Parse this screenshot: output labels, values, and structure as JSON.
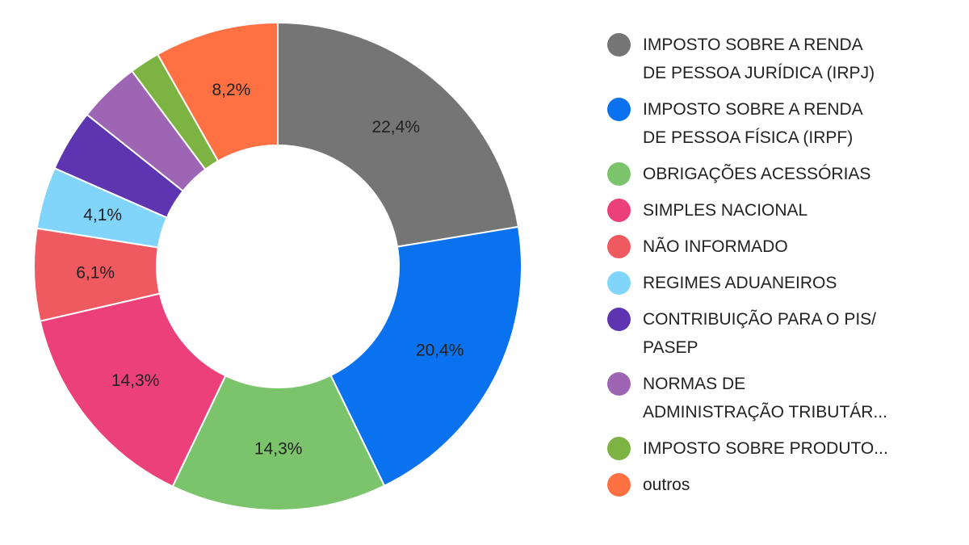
{
  "chart_data": {
    "type": "pie",
    "title": "",
    "categories": [
      "IMPOSTO SOBRE A RENDA\nDE PESSOA JURÍDICA (IRPJ)",
      "IMPOSTO SOBRE A RENDA\nDE PESSOA FÍSICA (IRPF)",
      "OBRIGAÇÕES ACESSÓRIAS",
      "SIMPLES NACIONAL",
      "NÃO INFORMADO",
      "REGIMES ADUANEIROS",
      "CONTRIBUIÇÃO PARA O PIS/\nPASEP",
      "NORMAS DE\nADMINISTRAÇÃO TRIBUTÁR...",
      "IMPOSTO SOBRE PRODUTO...",
      "outros"
    ],
    "values": [
      22.4,
      20.4,
      14.3,
      14.3,
      6.1,
      4.1,
      4.1,
      4.1,
      2.0,
      8.2
    ],
    "labels": [
      "22,4%",
      "20,4%",
      "14,3%",
      "14,3%",
      "6,1%",
      "4,1%",
      "",
      "",
      "",
      "8,2%"
    ],
    "colors": [
      "#757575",
      "#0a72ee",
      "#7bc46c",
      "#ec407a",
      "#ef5a61",
      "#81d4fa",
      "#5e35b1",
      "#9e65b4",
      "#7cb342",
      "#ff7043"
    ],
    "legend_position": "right",
    "donut": true
  }
}
